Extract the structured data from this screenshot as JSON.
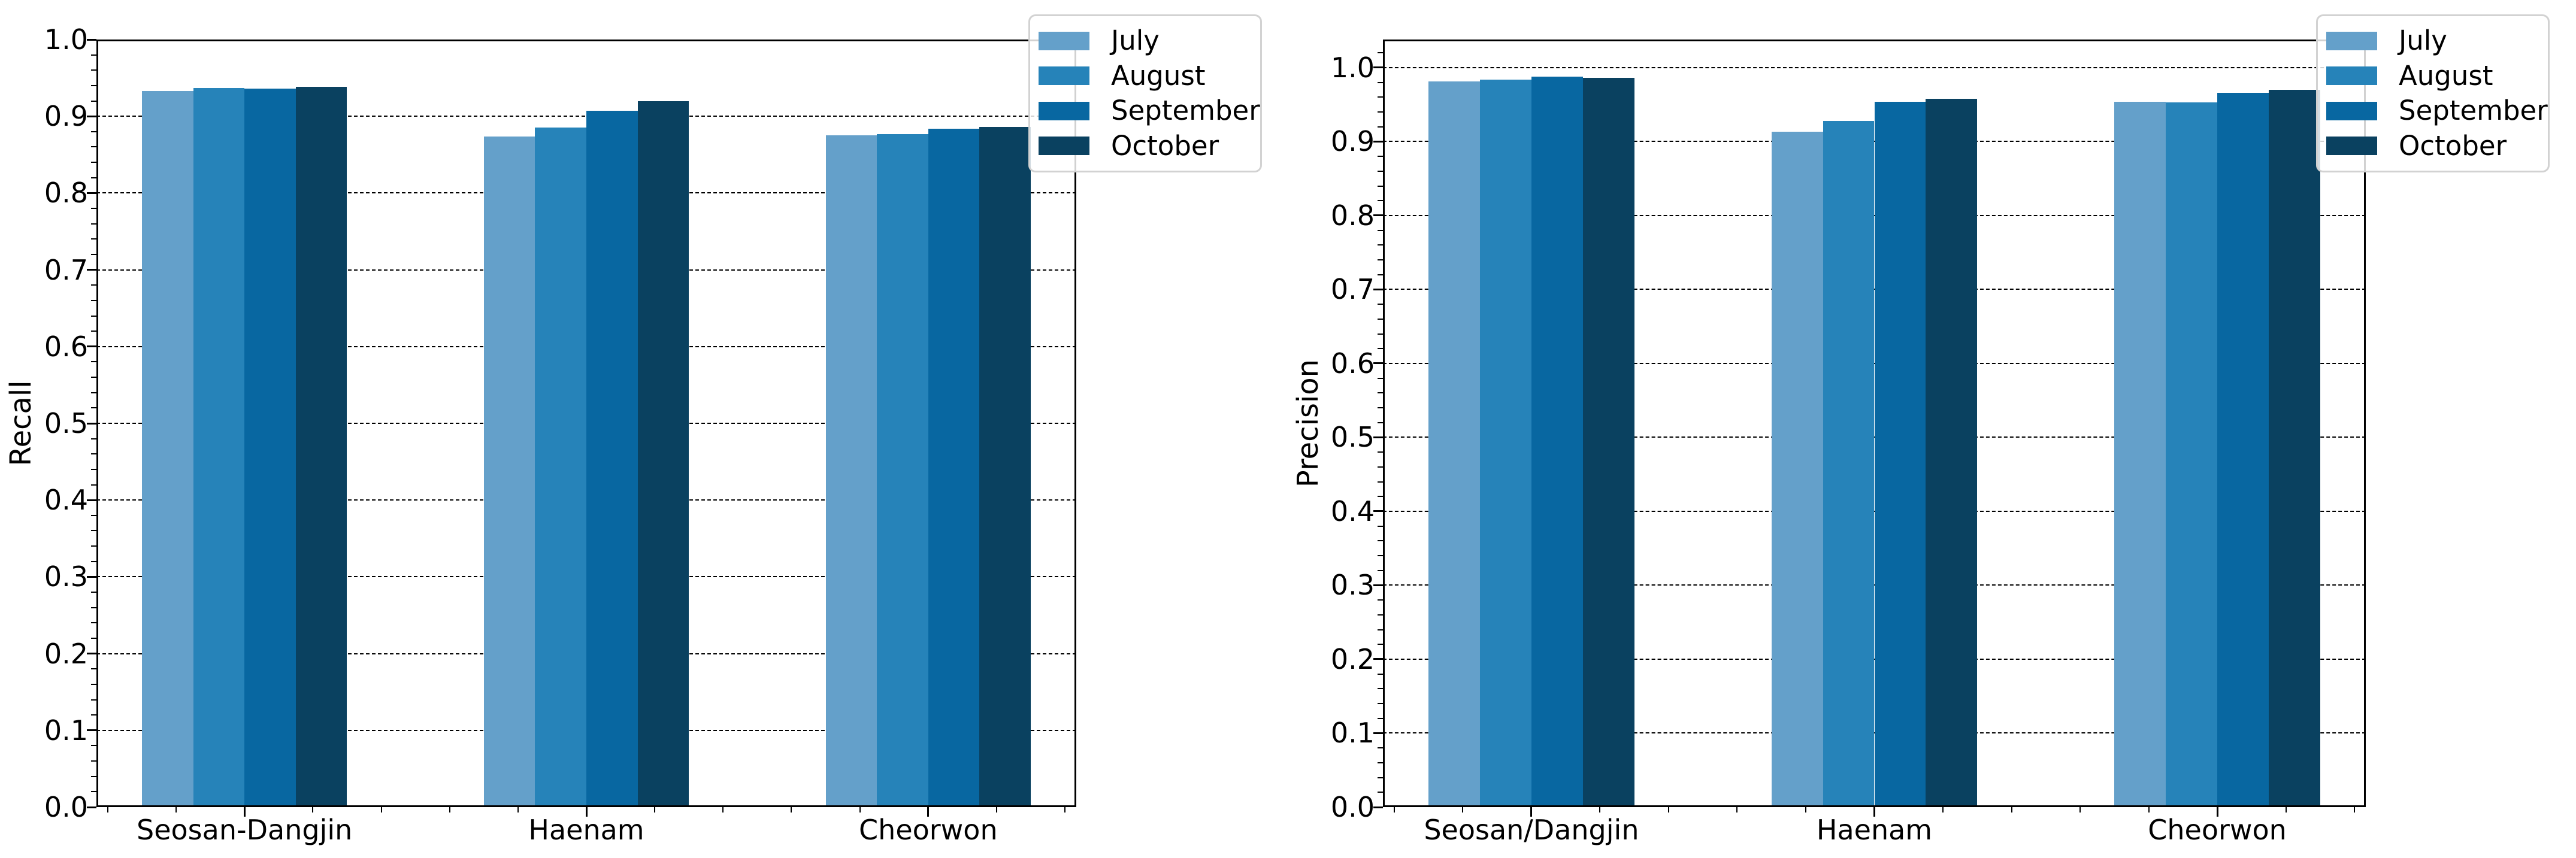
{
  "figure": {
    "background": "#ffffff",
    "series_colors": [
      "#64a0ca",
      "#2683b9",
      "#0867a1",
      "#0a4160"
    ]
  },
  "chart_data": [
    {
      "type": "bar",
      "title": "",
      "xlabel": "",
      "ylabel": "Recall",
      "categories": [
        "Seosan-Dangjin",
        "Haenam",
        "Cheorwon"
      ],
      "series": [
        {
          "name": "July",
          "color": "#64a0ca",
          "values": [
            0.933,
            0.874,
            0.875
          ]
        },
        {
          "name": "August",
          "color": "#2683b9",
          "values": [
            0.937,
            0.885,
            0.877
          ]
        },
        {
          "name": "September",
          "color": "#0867a1",
          "values": [
            0.936,
            0.907,
            0.884
          ]
        },
        {
          "name": "October",
          "color": "#0a4160",
          "values": [
            0.938,
            0.92,
            0.886
          ]
        }
      ],
      "ylim": [
        0,
        1.0
      ],
      "yticks": [
        0.0,
        0.1,
        0.2,
        0.3,
        0.4,
        0.5,
        0.6,
        0.7,
        0.8,
        0.9,
        1.0
      ],
      "ytick_labels": [
        "0.0",
        "0.1",
        "0.2",
        "0.3",
        "0.4",
        "0.5",
        "0.6",
        "0.7",
        "0.8",
        "0.9",
        "1.0"
      ],
      "grid": {
        "axis": "y",
        "style": "dashed",
        "color": "#000000"
      },
      "legend": {
        "position": "upper right",
        "labels": [
          "July",
          "August",
          "September",
          "October"
        ]
      }
    },
    {
      "type": "bar",
      "title": "",
      "xlabel": "",
      "ylabel": "Precision",
      "categories": [
        "Seosan/Dangjin",
        "Haenam",
        "Cheorwon"
      ],
      "series": [
        {
          "name": "July",
          "color": "#64a0ca",
          "values": [
            0.981,
            0.913,
            0.954
          ]
        },
        {
          "name": "August",
          "color": "#2683b9",
          "values": [
            0.984,
            0.928,
            0.953
          ]
        },
        {
          "name": "September",
          "color": "#0867a1",
          "values": [
            0.988,
            0.954,
            0.966
          ]
        },
        {
          "name": "October",
          "color": "#0a4160",
          "values": [
            0.986,
            0.958,
            0.97
          ]
        }
      ],
      "ylim": [
        0,
        1.038
      ],
      "yticks": [
        0.0,
        0.1,
        0.2,
        0.3,
        0.4,
        0.5,
        0.6,
        0.7,
        0.8,
        0.9,
        1.0
      ],
      "ytick_labels": [
        "0.0",
        "0.1",
        "0.2",
        "0.3",
        "0.4",
        "0.5",
        "0.6",
        "0.7",
        "0.8",
        "0.9",
        "1.0"
      ],
      "grid": {
        "axis": "y",
        "style": "dashed",
        "color": "#000000"
      },
      "legend": {
        "position": "upper right",
        "labels": [
          "July",
          "August",
          "September",
          "October"
        ]
      }
    }
  ]
}
